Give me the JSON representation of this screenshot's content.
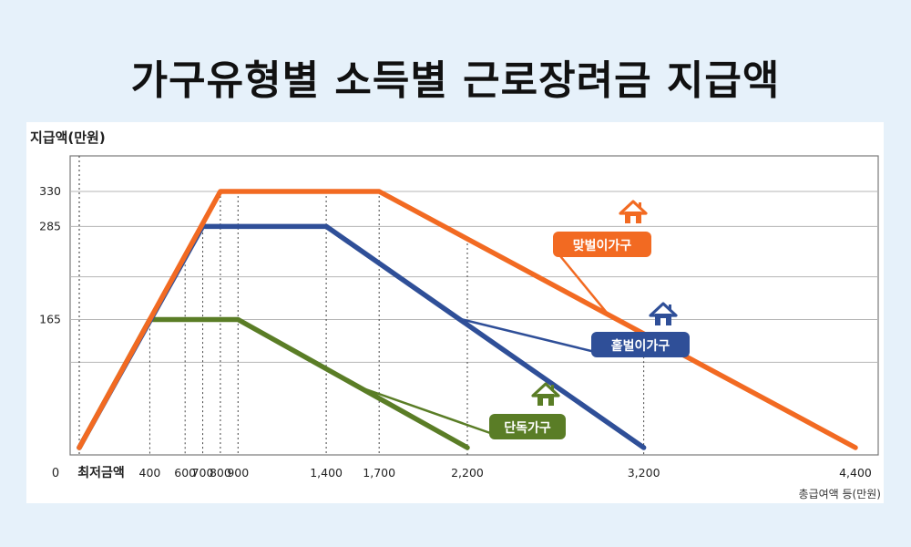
{
  "title": "가구유형별 소득별 근로장려금 지급액",
  "chart_data": {
    "type": "line",
    "ylabel": "지급액(만원)",
    "xlabel": "총급여액 등(만원)",
    "origin_label": "0",
    "min_wage_label": "최저금액",
    "x_ticks": [
      {
        "value": 400,
        "label": "400"
      },
      {
        "value": 600,
        "label": "600"
      },
      {
        "value": 700,
        "label": "700"
      },
      {
        "value": 800,
        "label": "800"
      },
      {
        "value": 900,
        "label": "900"
      },
      {
        "value": 1400,
        "label": "1,400"
      },
      {
        "value": 1700,
        "label": "1,700"
      },
      {
        "value": 2200,
        "label": "2,200"
      },
      {
        "value": 3200,
        "label": "3,200"
      },
      {
        "value": 4400,
        "label": "4,400"
      }
    ],
    "y_ticks": [
      {
        "value": 330,
        "label": "330"
      },
      {
        "value": 285,
        "label": "285"
      },
      {
        "value": 165,
        "label": "165"
      }
    ],
    "xlim": [
      0,
      4400
    ],
    "ylim": [
      0,
      330
    ],
    "series": [
      {
        "name": "맞벌이가구",
        "color": "#f26a22",
        "points": [
          [
            0,
            0
          ],
          [
            800,
            330
          ],
          [
            1700,
            330
          ],
          [
            4400,
            0
          ]
        ]
      },
      {
        "name": "홑벌이가구",
        "color": "#2f4f98",
        "points": [
          [
            0,
            0
          ],
          [
            700,
            285
          ],
          [
            1400,
            285
          ],
          [
            3200,
            0
          ]
        ]
      },
      {
        "name": "단독가구",
        "color": "#5a7d26",
        "points": [
          [
            0,
            0
          ],
          [
            400,
            165
          ],
          [
            900,
            165
          ],
          [
            2200,
            0
          ]
        ]
      }
    ]
  }
}
